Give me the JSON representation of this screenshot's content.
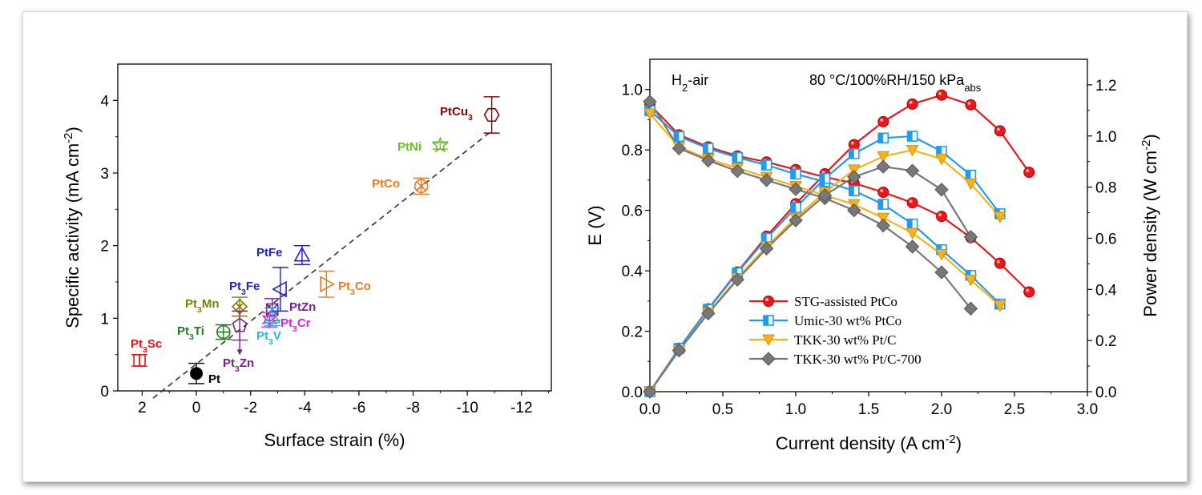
{
  "chart_data": [
    {
      "type": "scatter",
      "xlabel": "Surface strain (%)",
      "ylabel": "Specific activity (mA cm",
      "ylabel_sup": "-2",
      "ylabel_end": ")",
      "xlim": [
        2.9,
        -13.1
      ],
      "ylim": [
        0,
        4.5
      ],
      "xticks": [
        2,
        0,
        -2,
        -4,
        -6,
        -8,
        -10,
        -12
      ],
      "xtick_labels": [
        "2",
        "0",
        "-2",
        "-4",
        "-6",
        "-8",
        "-10",
        "-12"
      ],
      "yticks": [
        0,
        1,
        2,
        3,
        4
      ],
      "ytick_labels": [
        "0",
        "1",
        "2",
        "3",
        "4"
      ],
      "trendline": {
        "x": [
          1.6,
          -10.9
        ],
        "y": [
          -0.1,
          3.58
        ],
        "style": "dashed",
        "color": "#333333"
      },
      "points": [
        {
          "label": "Pt",
          "sub": "",
          "x": 0,
          "y": 0.24,
          "err": 0.14,
          "marker": "circle-filled",
          "color": "#000000"
        },
        {
          "label": "Pt",
          "sub": "3",
          "suffix": "Sc",
          "x": 2.1,
          "y": 0.42,
          "err": 0.08,
          "marker": "square-v",
          "color": "#e8121c"
        },
        {
          "label": "Pt",
          "sub": "3",
          "suffix": "Ti",
          "x": -1.0,
          "y": 0.81,
          "err": 0.1,
          "marker": "circle-h",
          "color": "#1e7d1e"
        },
        {
          "label": "Pt",
          "sub": "3",
          "suffix": "Mn",
          "x": -1.6,
          "y": 1.16,
          "err": 0.13,
          "marker": "diamond-x",
          "color": "#7f7f00"
        },
        {
          "label": "Pt",
          "sub": "3",
          "suffix": "Zn",
          "x": -1.6,
          "y": 0.9,
          "err": 0.2,
          "marker": "pentagon",
          "color": "#7a1f8a"
        },
        {
          "label": "PtZn",
          "sub": "",
          "x": -2.8,
          "y": 1.12,
          "err": 0.15,
          "marker": "square-x",
          "color": "#7a1f8a"
        },
        {
          "label": "Pt",
          "sub": "3",
          "suffix": "Cr",
          "x": -2.7,
          "y": 0.98,
          "err": 0.1,
          "marker": "star-hex",
          "color": "#e020e0"
        },
        {
          "label": "Pt",
          "sub": "3",
          "suffix": "V",
          "x": -2.8,
          "y": 1.02,
          "err": 0.12,
          "marker": "triangle-up",
          "color": "#20c0d0"
        },
        {
          "label": "Pt",
          "sub": "3",
          "suffix": "Fe",
          "x": -3.1,
          "y": 1.4,
          "err": 0.3,
          "marker": "triangle-left",
          "color": "#2020d0"
        },
        {
          "label": "PtFe",
          "sub": "",
          "x": -3.9,
          "y": 1.87,
          "err": 0.13,
          "marker": "triangle-up",
          "color": "#2020d0"
        },
        {
          "label": "Pt",
          "sub": "3",
          "suffix": "Co",
          "x": -4.8,
          "y": 1.47,
          "err": 0.18,
          "marker": "triangle-right",
          "color": "#f07820"
        },
        {
          "label": "PtCo",
          "sub": "",
          "x": -8.3,
          "y": 2.82,
          "err": 0.11,
          "marker": "circle-x",
          "color": "#f07820"
        },
        {
          "label": "PtNi",
          "sub": "",
          "x": -9.0,
          "y": 3.38,
          "err": 0.05,
          "marker": "star",
          "color": "#6cc12a"
        },
        {
          "label": "PtCu",
          "sub": "3",
          "suffix": "",
          "x": -10.9,
          "y": 3.8,
          "err": 0.25,
          "marker": "hexagon",
          "color": "#8b0000"
        }
      ]
    },
    {
      "type": "line",
      "xlabel": "Current density (A cm",
      "xlabel_sup": "-2",
      "xlabel_end": ")",
      "ylabel": "E (V)",
      "y2label": "Power density (W cm",
      "y2label_sup": "-2",
      "y2label_end": ")",
      "xlim": [
        0,
        3.0
      ],
      "ylim": [
        0,
        1.1
      ],
      "y2lim": [
        0,
        1.3
      ],
      "xticks": [
        0.0,
        0.5,
        1.0,
        1.5,
        2.0,
        2.5,
        3.0
      ],
      "xtick_labels": [
        "0.0",
        "0.5",
        "1.0",
        "1.5",
        "2.0",
        "2.5",
        "3.0"
      ],
      "yticks": [
        0.0,
        0.2,
        0.4,
        0.6,
        0.8,
        1.0
      ],
      "ytick_labels": [
        "0.0",
        "0.2",
        "0.4",
        "0.6",
        "0.8",
        "1.0"
      ],
      "y2ticks": [
        0.0,
        0.2,
        0.4,
        0.6,
        0.8,
        1.0,
        1.2
      ],
      "y2tick_labels": [
        "0.0",
        "0.2",
        "0.4",
        "0.6",
        "0.8",
        "1.0",
        "1.2"
      ],
      "annotations": {
        "gas": "H",
        "gas_sub": "2",
        "gas_end": "-air",
        "conditions": "80 °C/100%RH/150 kPa",
        "conditions_sub": "abs"
      },
      "series": [
        {
          "name": "STG-assisted PtCo",
          "color": "#e8191c",
          "marker": "circle",
          "x": [
            0.0,
            0.2,
            0.4,
            0.6,
            0.8,
            1.0,
            1.2,
            1.4,
            1.6,
            1.8,
            2.0,
            2.2,
            2.4,
            2.6
          ],
          "voltage": [
            0.95,
            0.85,
            0.81,
            0.78,
            0.76,
            0.735,
            0.71,
            0.69,
            0.66,
            0.625,
            0.58,
            0.51,
            0.425,
            0.33
          ],
          "power": [
            0.0,
            0.17,
            0.324,
            0.468,
            0.608,
            0.735,
            0.852,
            0.966,
            1.056,
            1.125,
            1.16,
            1.122,
            1.02,
            0.858
          ]
        },
        {
          "name": "Umic-30 wt% PtCo",
          "color": "#1f9cf0",
          "marker": "square-half",
          "x": [
            0.0,
            0.2,
            0.4,
            0.6,
            0.8,
            1.0,
            1.2,
            1.4,
            1.6,
            1.8,
            2.0,
            2.2,
            2.4
          ],
          "voltage": [
            0.93,
            0.845,
            0.805,
            0.775,
            0.75,
            0.72,
            0.695,
            0.665,
            0.62,
            0.555,
            0.47,
            0.385,
            0.29
          ],
          "power": [
            0.0,
            0.169,
            0.322,
            0.465,
            0.6,
            0.72,
            0.834,
            0.931,
            0.992,
            0.999,
            0.94,
            0.847,
            0.696
          ]
        },
        {
          "name": "TKK-30 wt% Pt/C",
          "color": "#f5b31f",
          "marker": "triangle-down",
          "x": [
            0.0,
            0.2,
            0.4,
            0.6,
            0.8,
            1.0,
            1.2,
            1.4,
            1.6,
            1.8,
            2.0,
            2.2,
            2.4
          ],
          "voltage": [
            0.92,
            0.81,
            0.77,
            0.74,
            0.71,
            0.68,
            0.65,
            0.62,
            0.575,
            0.525,
            0.455,
            0.37,
            0.285
          ],
          "power": [
            0.0,
            0.162,
            0.308,
            0.444,
            0.568,
            0.68,
            0.78,
            0.868,
            0.92,
            0.945,
            0.91,
            0.814,
            0.684
          ]
        },
        {
          "name": "TKK-30 wt% Pt/C-700",
          "color": "#787878",
          "marker": "diamond",
          "x": [
            0.0,
            0.2,
            0.4,
            0.6,
            0.8,
            1.0,
            1.2,
            1.4,
            1.6,
            1.8,
            2.0,
            2.2
          ],
          "voltage": [
            0.96,
            0.805,
            0.765,
            0.73,
            0.7,
            0.67,
            0.64,
            0.6,
            0.55,
            0.48,
            0.395,
            0.275
          ],
          "power": [
            0.0,
            0.161,
            0.306,
            0.438,
            0.56,
            0.67,
            0.768,
            0.84,
            0.88,
            0.864,
            0.79,
            0.605
          ]
        }
      ]
    }
  ]
}
